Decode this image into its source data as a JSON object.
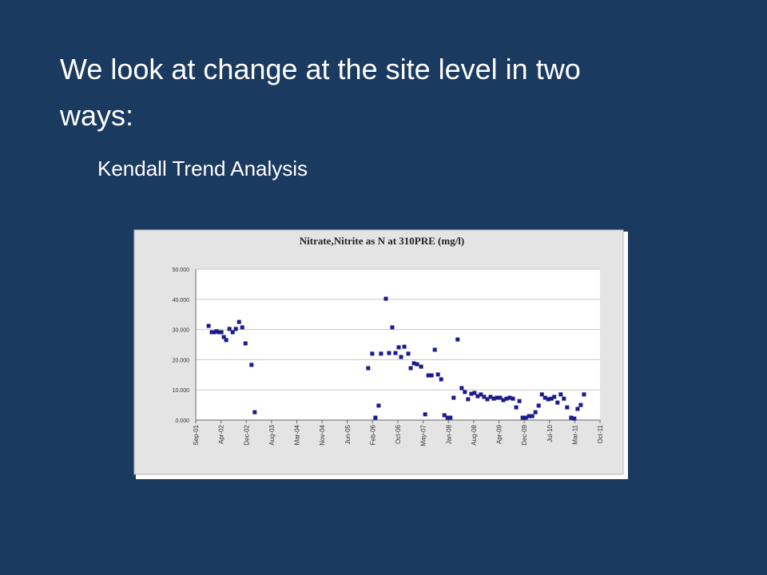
{
  "slide": {
    "title": "We look at change at the site level in two ways:",
    "bullet": "Kendall Trend Analysis"
  },
  "chart_data": {
    "type": "scatter",
    "title": "Nitrate,Nitrite as N at 310PRE (mg/l)",
    "series": [
      {
        "color": "#1a1a8c",
        "x": [
          2001.99,
          2002.07,
          2002.13,
          2002.19,
          2002.25,
          2002.31,
          2002.37,
          2002.43,
          2002.51,
          2002.59,
          2002.67,
          2002.75,
          2002.83,
          2002.91,
          2003.06,
          2003.14,
          2005.97,
          2006.07,
          2006.15,
          2006.23,
          2006.29,
          2006.41,
          2006.49,
          2006.57,
          2006.65,
          2006.73,
          2006.79,
          2006.87,
          2006.97,
          2007.03,
          2007.11,
          2007.19,
          2007.29,
          2007.39,
          2007.47,
          2007.55,
          2007.63,
          2007.71,
          2007.79,
          2007.87,
          2007.95,
          2008.02,
          2008.1,
          2008.2,
          2008.3,
          2008.38,
          2008.46,
          2008.54,
          2008.62,
          2008.7,
          2008.78,
          2008.86,
          2008.94,
          2009.02,
          2009.1,
          2009.18,
          2009.26,
          2009.34,
          2009.42,
          2009.5,
          2009.58,
          2009.66,
          2009.74,
          2009.82,
          2009.9,
          2009.98,
          2010.06,
          2010.14,
          2010.22,
          2010.3,
          2010.38,
          2010.46,
          2010.54,
          2010.61,
          2010.69,
          2010.77,
          2010.85,
          2010.93,
          2011.03,
          2011.11,
          2011.19,
          2011.27,
          2011.35
        ],
        "values": [
          31.2,
          29.1,
          29.1,
          29.4,
          29.1,
          29.1,
          27.5,
          26.5,
          30.2,
          29.1,
          30.2,
          32.5,
          30.7,
          25.4,
          18.3,
          2.6,
          17.2,
          22,
          0.8,
          4.8,
          22,
          40.2,
          22.2,
          30.7,
          22.2,
          24.1,
          20.9,
          24.3,
          22,
          17.2,
          18.8,
          18.5,
          17.7,
          1.9,
          14.8,
          14.8,
          23.3,
          15.1,
          13.5,
          1.6,
          0.8,
          0.8,
          7.4,
          26.7,
          10.6,
          9.3,
          6.9,
          8.7,
          9,
          7.9,
          8.5,
          7.7,
          6.9,
          7.7,
          7.1,
          7.4,
          7.4,
          6.6,
          7.1,
          7.4,
          7.1,
          4.2,
          6.3,
          0.8,
          0.8,
          1.3,
          1.3,
          2.6,
          4.8,
          8.5,
          7.4,
          6.9,
          7.1,
          7.7,
          5.8,
          8.5,
          7.1,
          4.2,
          0.8,
          0.5,
          3.7,
          5,
          8.5
        ]
      }
    ],
    "xlim": [
      2001.67,
      2011.75
    ],
    "xticks": [
      {
        "value": 2001.67,
        "label": "Sep-01"
      },
      {
        "value": 2002.3,
        "label": "Apr-02"
      },
      {
        "value": 2002.93,
        "label": "Dec-02"
      },
      {
        "value": 2003.56,
        "label": "Aug-03"
      },
      {
        "value": 2004.19,
        "label": "Mar-04"
      },
      {
        "value": 2004.82,
        "label": "Nov-04"
      },
      {
        "value": 2005.45,
        "label": "Jun-05"
      },
      {
        "value": 2006.08,
        "label": "Feb-06"
      },
      {
        "value": 2006.71,
        "label": "Oct-06"
      },
      {
        "value": 2007.34,
        "label": "May-07"
      },
      {
        "value": 2007.97,
        "label": "Jan-08"
      },
      {
        "value": 2008.6,
        "label": "Aug-08"
      },
      {
        "value": 2009.23,
        "label": "Apr-09"
      },
      {
        "value": 2009.86,
        "label": "Dec-09"
      },
      {
        "value": 2010.49,
        "label": "Jul-10"
      },
      {
        "value": 2011.12,
        "label": "Mar-11"
      },
      {
        "value": 2011.75,
        "label": "Oct-11"
      }
    ],
    "ylim": [
      0,
      50
    ],
    "yticks": [
      {
        "value": 0,
        "label": "0.000"
      },
      {
        "value": 10,
        "label": "10.000"
      },
      {
        "value": 20,
        "label": "20.000"
      },
      {
        "value": 30,
        "label": "30.000"
      },
      {
        "value": 40,
        "label": "40.000"
      },
      {
        "value": 50,
        "label": "50.000"
      }
    ],
    "grid": true
  }
}
